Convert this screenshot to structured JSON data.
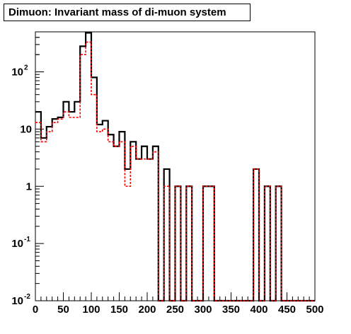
{
  "title": "Dimuon: Invariant mass of di-muon system",
  "chart_data": {
    "type": "histogram",
    "title": "Dimuon: Invariant mass of di-muon system",
    "xlabel": "",
    "ylabel": "",
    "xlim": [
      0,
      500
    ],
    "ylim": [
      0.01,
      500
    ],
    "yscale": "log",
    "grid": false,
    "legend": "none",
    "bin_width": 10,
    "bin_edges_start": 0,
    "x_tick_labels": [
      "0",
      "50",
      "100",
      "150",
      "200",
      "250",
      "300",
      "350",
      "400",
      "450",
      "500"
    ],
    "y_tick_labels": [
      {
        "base": "10",
        "exp": "-2"
      },
      {
        "base": "10",
        "exp": "-1"
      },
      {
        "base": "1",
        "exp": ""
      },
      {
        "base": "10",
        "exp": ""
      },
      {
        "base": "10",
        "exp": "2"
      }
    ],
    "series": [
      {
        "color": "#000000",
        "style": "solid",
        "values": [
          20,
          7,
          11,
          15,
          16,
          30,
          20,
          30,
          280,
          480,
          80,
          12,
          14,
          8,
          5,
          9,
          2,
          6,
          3,
          5,
          3,
          5,
          0,
          2,
          0,
          1,
          0,
          1,
          0,
          0,
          1,
          1,
          0,
          0,
          0,
          0,
          0,
          0,
          0,
          2,
          0,
          1,
          0,
          1,
          0,
          0,
          0,
          0,
          0,
          0
        ]
      },
      {
        "color": "#ff0000",
        "style": "dashed",
        "values": [
          13,
          6,
          9,
          13,
          15,
          20,
          16,
          16,
          200,
          330,
          40,
          9,
          10,
          6,
          5,
          6,
          1,
          5,
          3,
          3,
          3,
          4,
          0,
          1,
          0,
          1,
          0,
          1,
          0,
          0,
          1,
          1,
          0,
          0,
          0,
          0,
          0,
          0,
          0,
          2,
          0,
          1,
          0,
          1,
          0,
          0,
          0,
          0,
          0,
          0
        ]
      }
    ]
  }
}
